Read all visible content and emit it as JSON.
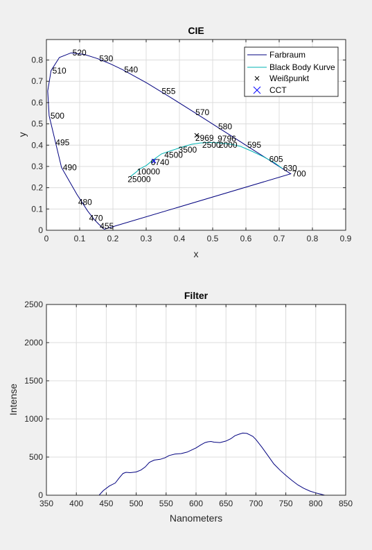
{
  "chart_data": [
    {
      "type": "line",
      "title": "CIE",
      "xlabel": "x",
      "ylabel": "y",
      "xlim": [
        0,
        0.9
      ],
      "ylim": [
        0,
        0.8
      ],
      "xticks": [
        0,
        0.1,
        0.2,
        0.3,
        0.4,
        0.5,
        0.6,
        0.7,
        0.8,
        0.9
      ],
      "yticks": [
        0,
        0.1,
        0.2,
        0.3,
        0.4,
        0.5,
        0.6,
        0.7,
        0.8
      ],
      "grid": true,
      "legend": {
        "position": "top-right",
        "entries": [
          "Farbraum",
          "Black Body Kurve",
          "Weißpunkt",
          "CCT"
        ]
      },
      "series": [
        {
          "name": "Farbraum",
          "color": "#00007f",
          "x": [
            0.1741,
            0.1702,
            0.1644,
            0.1566,
            0.144,
            0.1241,
            0.0913,
            0.0454,
            0.0082,
            0.0039,
            0.0139,
            0.0389,
            0.0743,
            0.1142,
            0.1547,
            0.1929,
            0.2296,
            0.3016,
            0.3731,
            0.4441,
            0.5125,
            0.5752,
            0.627,
            0.6658,
            0.6915,
            0.7079,
            0.719,
            0.726,
            0.7347,
            0.1741
          ],
          "y": [
            0.005,
            0.0089,
            0.0187,
            0.0295,
            0.0502,
            0.0904,
            0.1697,
            0.295,
            0.5384,
            0.6548,
            0.7502,
            0.812,
            0.8338,
            0.8262,
            0.8059,
            0.7816,
            0.7543,
            0.6923,
            0.6245,
            0.5547,
            0.4866,
            0.4242,
            0.3725,
            0.334,
            0.3083,
            0.292,
            0.2809,
            0.274,
            0.2653,
            0.005
          ]
        },
        {
          "name": "Black Body Kurve",
          "color": "#00b3b3",
          "x": [
            0.2526,
            0.2684,
            0.2807,
            0.3002,
            0.3221,
            0.3461,
            0.3805,
            0.4083,
            0.4369,
            0.463,
            0.4872,
            0.5109,
            0.5353,
            0.5589,
            0.5857,
            0.62,
            0.653,
            0.686,
            0.71
          ],
          "y": [
            0.2518,
            0.2715,
            0.2883,
            0.3041,
            0.3318,
            0.359,
            0.3768,
            0.3912,
            0.4041,
            0.4104,
            0.4125,
            0.4116,
            0.4081,
            0.4036,
            0.3932,
            0.37,
            0.345,
            0.317,
            0.29
          ]
        }
      ],
      "whitepoint": {
        "name": "Weißpunkt",
        "x": 0.452,
        "y": 0.446
      },
      "cct": {
        "name": "CCT",
        "x": 0.3235,
        "y": 0.3255
      },
      "wavelength_labels": [
        {
          "text": "520",
          "x": 0.0743,
          "y": 0.8338
        },
        {
          "text": "530",
          "x": 0.1547,
          "y": 0.8059
        },
        {
          "text": "540",
          "x": 0.2296,
          "y": 0.7543
        },
        {
          "text": "555",
          "x": 0.3424,
          "y": 0.6537
        },
        {
          "text": "570",
          "x": 0.4441,
          "y": 0.5547
        },
        {
          "text": "580",
          "x": 0.5125,
          "y": 0.4866
        },
        {
          "text": "595",
          "x": 0.6,
          "y": 0.4003
        },
        {
          "text": "605",
          "x": 0.6658,
          "y": 0.334
        },
        {
          "text": "630",
          "x": 0.7079,
          "y": 0.292
        },
        {
          "text": "700",
          "x": 0.7347,
          "y": 0.2653
        },
        {
          "text": "510",
          "x": 0.0139,
          "y": 0.7502
        },
        {
          "text": "500",
          "x": 0.0082,
          "y": 0.5384
        },
        {
          "text": "495",
          "x": 0.0235,
          "y": 0.4127
        },
        {
          "text": "490",
          "x": 0.0454,
          "y": 0.295
        },
        {
          "text": "480",
          "x": 0.0913,
          "y": 0.1327
        },
        {
          "text": "470",
          "x": 0.1241,
          "y": 0.0578
        },
        {
          "text": "455",
          "x": 0.1566,
          "y": 0.0188
        }
      ],
      "cct_labels": [
        {
          "text": "25000",
          "x": 0.2526,
          "y": 0.2518
        },
        {
          "text": "10000",
          "x": 0.2807,
          "y": 0.2883
        },
        {
          "text": "6740",
          "x": 0.3221,
          "y": 0.3318
        },
        {
          "text": "4500",
          "x": 0.363,
          "y": 0.3674
        },
        {
          "text": "3500",
          "x": 0.4053,
          "y": 0.3907
        },
        {
          "text": "2969",
          "x": 0.456,
          "y": 0.446
        },
        {
          "text": "2500",
          "x": 0.4769,
          "y": 0.4137
        },
        {
          "text": "9796",
          "x": 0.5232,
          "y": 0.4427
        },
        {
          "text": "2000",
          "x": 0.5267,
          "y": 0.4133
        }
      ]
    },
    {
      "type": "line",
      "title": "Filter",
      "xlabel": "Nanometers",
      "ylabel": "Intense",
      "xlim": [
        350,
        850
      ],
      "ylim": [
        0,
        2500
      ],
      "xticks": [
        350,
        400,
        450,
        500,
        550,
        600,
        650,
        700,
        750,
        800,
        850
      ],
      "yticks": [
        0,
        500,
        1000,
        1500,
        2000,
        2500
      ],
      "grid": true,
      "series": [
        {
          "color": "#00007f",
          "x": [
            350,
            400,
            438,
            445,
            455,
            465,
            472,
            478,
            483,
            490,
            500,
            508,
            515,
            522,
            530,
            540,
            548,
            555,
            565,
            575,
            585,
            592,
            600,
            608,
            615,
            620,
            625,
            630,
            640,
            650,
            658,
            665,
            672,
            678,
            685,
            690,
            695,
            700,
            710,
            720,
            730,
            740,
            750,
            760,
            770,
            780,
            790,
            800,
            808,
            815,
            850
          ],
          "y": [
            0,
            0,
            0,
            60,
            120,
            160,
            230,
            285,
            300,
            295,
            305,
            330,
            370,
            430,
            460,
            470,
            490,
            520,
            540,
            545,
            565,
            590,
            620,
            660,
            690,
            700,
            705,
            695,
            690,
            710,
            740,
            780,
            800,
            815,
            810,
            790,
            770,
            730,
            630,
            520,
            410,
            330,
            260,
            195,
            135,
            90,
            55,
            30,
            15,
            0,
            0
          ]
        }
      ]
    }
  ]
}
